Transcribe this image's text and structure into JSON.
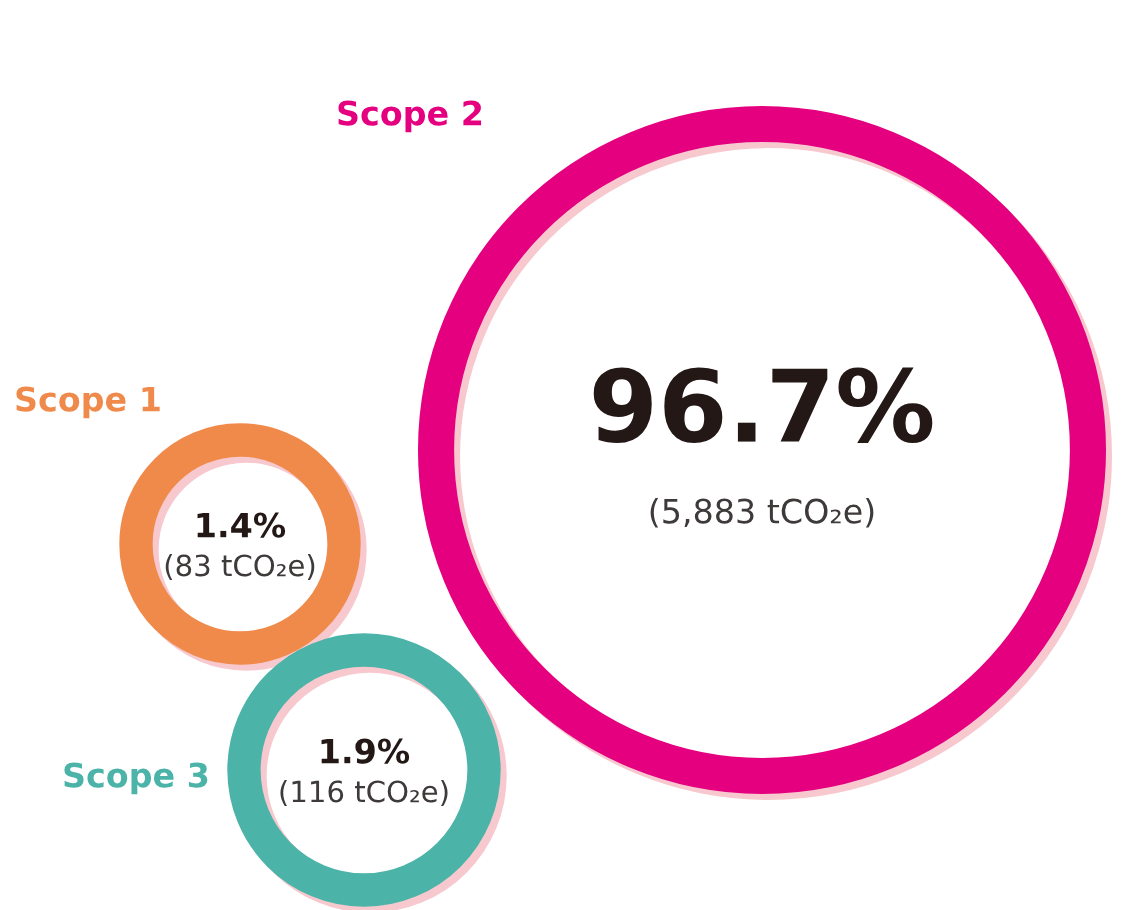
{
  "chart_data": {
    "type": "other",
    "categories": [
      "Scope 1",
      "Scope 2",
      "Scope 3"
    ],
    "values": [
      1.4,
      96.7,
      1.9
    ],
    "value_labels": [
      "1.4%",
      "96.7%",
      "1.9%"
    ],
    "colors": [
      "#f08a4b",
      "#e4007f",
      "#4bb3a7"
    ],
    "annotations": [
      "(83 tCO₂e)",
      "(5,883 tCO₂e)",
      "(116 tCO₂e)"
    ]
  }
}
